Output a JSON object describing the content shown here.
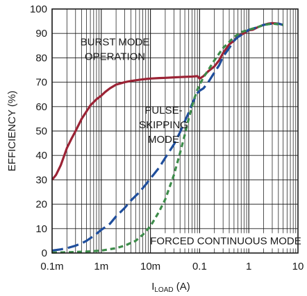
{
  "chart_data": {
    "type": "line",
    "title": "",
    "xlabel": "I",
    "xlabel_subscript": "LOAD",
    "xlabel_unit": " (A)",
    "ylabel": "EFFICIENCY (%)",
    "x_scale": "log",
    "xlim": [
      0.0001,
      10
    ],
    "ylim": [
      0,
      100
    ],
    "grid": true,
    "x_ticks": [
      {
        "value": 0.0001,
        "label": "0.1m"
      },
      {
        "value": 0.001,
        "label": "1m"
      },
      {
        "value": 0.01,
        "label": "10m"
      },
      {
        "value": 0.1,
        "label": "0.1"
      },
      {
        "value": 1,
        "label": "1"
      },
      {
        "value": 10,
        "label": "10"
      }
    ],
    "y_ticks": [
      {
        "value": 0,
        "label": "0"
      },
      {
        "value": 10,
        "label": "10"
      },
      {
        "value": 20,
        "label": "20"
      },
      {
        "value": 30,
        "label": "30"
      },
      {
        "value": 40,
        "label": "40"
      },
      {
        "value": 50,
        "label": "50"
      },
      {
        "value": 60,
        "label": "60"
      },
      {
        "value": 70,
        "label": "70"
      },
      {
        "value": 80,
        "label": "80"
      },
      {
        "value": 90,
        "label": "90"
      },
      {
        "value": 100,
        "label": "100"
      }
    ],
    "annotations": [
      {
        "id": "burst",
        "lines": [
          "BURST MODE",
          "OPERATION"
        ],
        "x": 0.0019,
        "y": 83.5
      },
      {
        "id": "pulse",
        "lines": [
          "PULSE-",
          "SKIPPING",
          "MODE"
        ],
        "x": 0.0185,
        "y": 52.5
      },
      {
        "id": "forced",
        "lines": [
          "FORCED CONTINUOUS MODE"
        ],
        "x": 0.34,
        "y": 5
      }
    ],
    "series": [
      {
        "id": "burst",
        "color": "#9b2335",
        "dash": "solid",
        "x": [
          0.0001,
          0.00012,
          0.00015,
          0.0002,
          0.00025,
          0.0003,
          0.0004,
          0.0005,
          0.0006,
          0.0008,
          0.001,
          0.0012,
          0.0015,
          0.002,
          0.003,
          0.004,
          0.006,
          0.008,
          0.01,
          0.015,
          0.02,
          0.03,
          0.05,
          0.07,
          0.09,
          0.1,
          0.12,
          0.15,
          0.2,
          0.25,
          0.3,
          0.4,
          0.5,
          0.6,
          0.8,
          1.0,
          1.2,
          1.5,
          2.0,
          2.5,
          3.0,
          4.0,
          5.0
        ],
        "y": [
          30,
          32,
          36,
          43,
          47,
          50,
          55,
          58,
          60.5,
          63,
          64.5,
          66,
          67.5,
          69,
          70,
          70.5,
          71,
          71.3,
          71.5,
          71.7,
          71.8,
          72,
          72.2,
          72.3,
          72.5,
          71.5,
          72.5,
          74.5,
          76.5,
          79,
          82,
          85.5,
          87,
          89,
          90,
          91.3,
          91.5,
          92.5,
          93.5,
          94,
          94.2,
          94,
          93.5
        ]
      },
      {
        "id": "pulse",
        "color": "#1f4e9c",
        "dash": "long",
        "x": [
          0.0001,
          0.00015,
          0.0002,
          0.0003,
          0.0004,
          0.0005,
          0.0007,
          0.001,
          0.0015,
          0.002,
          0.003,
          0.004,
          0.006,
          0.008,
          0.01,
          0.015,
          0.02,
          0.03,
          0.04,
          0.05,
          0.06,
          0.07,
          0.08,
          0.09,
          0.1,
          0.12,
          0.15,
          0.2,
          0.25,
          0.3,
          0.4,
          0.5,
          0.6,
          0.8,
          1.0,
          1.5,
          2.0,
          3.0,
          4.0,
          5.0
        ],
        "y": [
          1,
          1.5,
          2,
          3,
          4,
          5,
          7,
          9.5,
          12,
          15,
          18.5,
          21.5,
          25,
          28,
          30.5,
          35,
          39,
          44.5,
          49.5,
          54,
          57.5,
          61,
          63.5,
          65.5,
          66.5,
          67.5,
          70,
          74,
          77,
          80.5,
          84,
          87,
          88.5,
          90,
          91.5,
          92.5,
          93.5,
          94,
          94,
          93.5
        ]
      },
      {
        "id": "forced",
        "color": "#3d8c4a",
        "dash": "short",
        "x": [
          0.0001,
          0.0002,
          0.0005,
          0.001,
          0.002,
          0.003,
          0.005,
          0.007,
          0.01,
          0.015,
          0.02,
          0.03,
          0.04,
          0.05,
          0.06,
          0.07,
          0.08,
          0.09,
          0.1,
          0.12,
          0.15,
          0.2,
          0.3,
          0.5,
          0.7,
          1.0,
          1.5,
          2.0,
          3.0,
          5.0
        ],
        "y": [
          0.2,
          0.3,
          0.6,
          1,
          2,
          3,
          5,
          7.5,
          11,
          17,
          22,
          32,
          41,
          48.5,
          55,
          60,
          64,
          67,
          69,
          72,
          75,
          79,
          84,
          88.5,
          90.5,
          91.5,
          92.5,
          93.5,
          94,
          93.5
        ]
      }
    ]
  }
}
